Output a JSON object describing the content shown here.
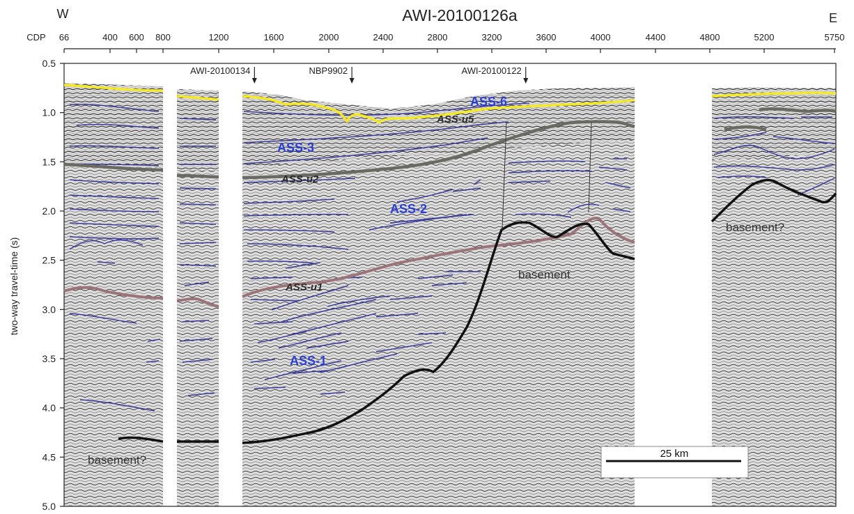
{
  "title": "AWI-20100126a",
  "direction": {
    "west": "W",
    "east": "E"
  },
  "top_axis": {
    "label": "CDP",
    "ticks": [
      "66",
      "400",
      "600",
      "800",
      "1200",
      "1600",
      "2000",
      "2400",
      "2800",
      "3200",
      "3600",
      "4000",
      "4400",
      "4800",
      "5200",
      "5750"
    ]
  },
  "left_axis": {
    "label": "two-way travel-time (s)",
    "ticks": [
      "0.5",
      "1.0",
      "1.5",
      "2.0",
      "2.5",
      "3.0",
      "3.5",
      "4.0",
      "4.5",
      "5.0"
    ],
    "range_s": [
      0.5,
      5.0
    ]
  },
  "crossings": [
    {
      "label": "AWI-20100134",
      "cdp": 1460
    },
    {
      "label": "NBP9902",
      "cdp": 2170
    },
    {
      "label": "AWI-20100122",
      "cdp": 3450
    }
  ],
  "unit_labels": [
    "ASS-6",
    "ASS-3",
    "ASS-2",
    "ASS-1"
  ],
  "unconformity_labels": [
    "ASS-u5",
    "ASS-u2",
    "ASS-u1"
  ],
  "basement_labels": [
    "basement?",
    "basement",
    "basement?"
  ],
  "scale_bar": {
    "label": "25 km"
  },
  "colors": {
    "seafloor": "#f6ea1a",
    "u5": "#6a6a62",
    "u2": "#6a6a62",
    "u1": "#9a7478",
    "basement": "#111111",
    "reflector": "#3a3a9c",
    "unit_label": "#2a3ed8",
    "seismic_bg": "#dcdcdc"
  }
}
